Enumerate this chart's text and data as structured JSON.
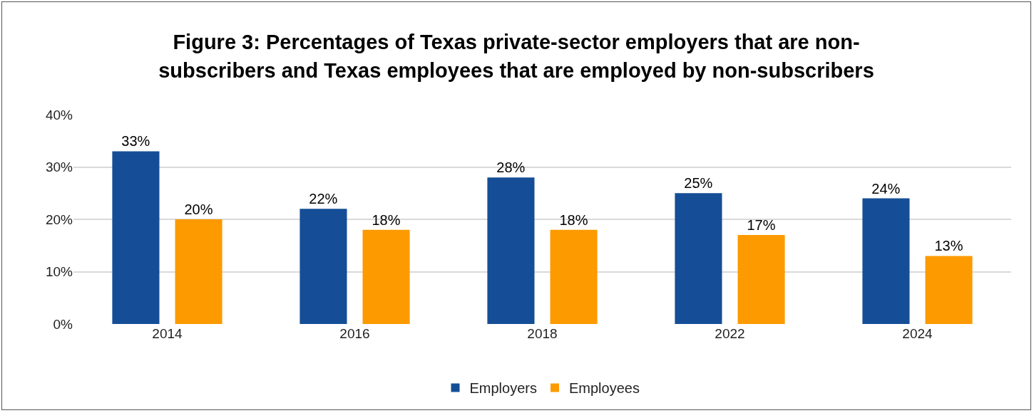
{
  "chart_data": {
    "type": "bar",
    "title": "Figure 3: Percentages of Texas private-sector employers that are non-subscribers and Texas employees that are employed by non-subscribers",
    "categories": [
      "2014",
      "2016",
      "2018",
      "2022",
      "2024"
    ],
    "series": [
      {
        "name": "Employers",
        "color": "#154e96",
        "values": [
          33,
          22,
          28,
          25,
          24
        ],
        "value_labels": [
          "33%",
          "22%",
          "28%",
          "25%",
          "24%"
        ]
      },
      {
        "name": "Employees",
        "color": "#fc9a00",
        "values": [
          20,
          18,
          18,
          17,
          13
        ],
        "value_labels": [
          "20%",
          "18%",
          "18%",
          "17%",
          "13%"
        ]
      }
    ],
    "ylim": [
      0,
      40
    ],
    "yticks": [
      {
        "value": 0,
        "label": "0%"
      },
      {
        "value": 10,
        "label": "10%"
      },
      {
        "value": 20,
        "label": "20%"
      },
      {
        "value": 30,
        "label": "30%"
      },
      {
        "value": 40,
        "label": "40%"
      }
    ],
    "grid": "y",
    "legend": "bottom"
  }
}
